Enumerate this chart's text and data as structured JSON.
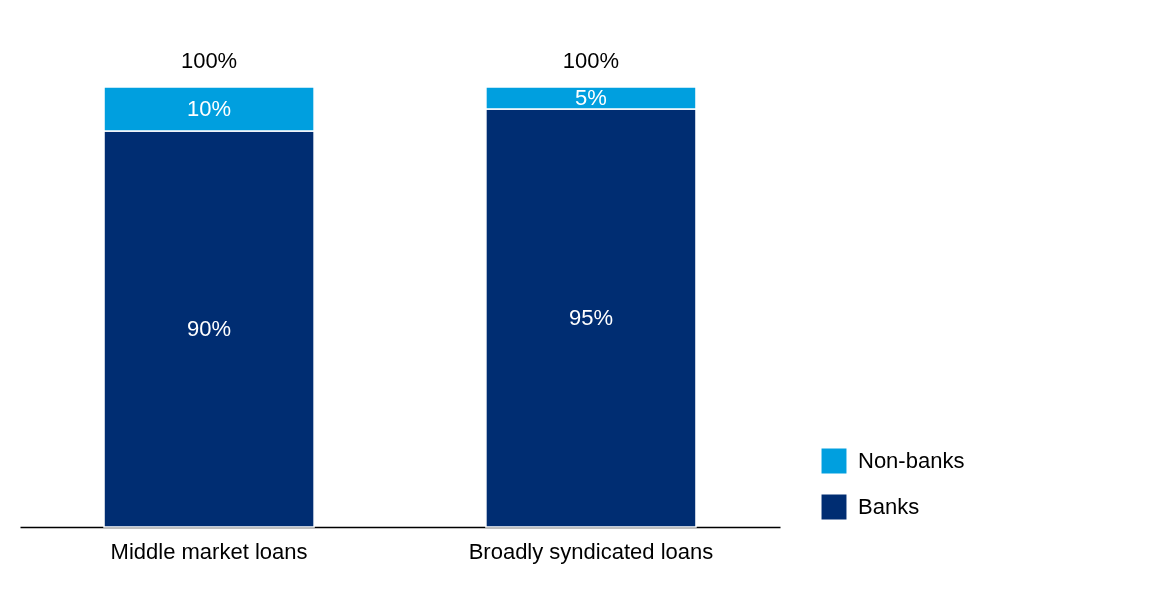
{
  "chart_data": {
    "type": "bar",
    "stacked": true,
    "categories": [
      "Middle market loans",
      "Broadly syndicated loans"
    ],
    "series": [
      {
        "name": "Banks",
        "color": "#002d72",
        "values": [
          90,
          95
        ],
        "value_labels": [
          "90%",
          "95%"
        ]
      },
      {
        "name": "Non-banks",
        "color": "#009fdf",
        "values": [
          10,
          5
        ],
        "value_labels": [
          "10%",
          "5%"
        ]
      }
    ],
    "totals": [
      "100%",
      "100%"
    ],
    "legend": "bottom right"
  }
}
